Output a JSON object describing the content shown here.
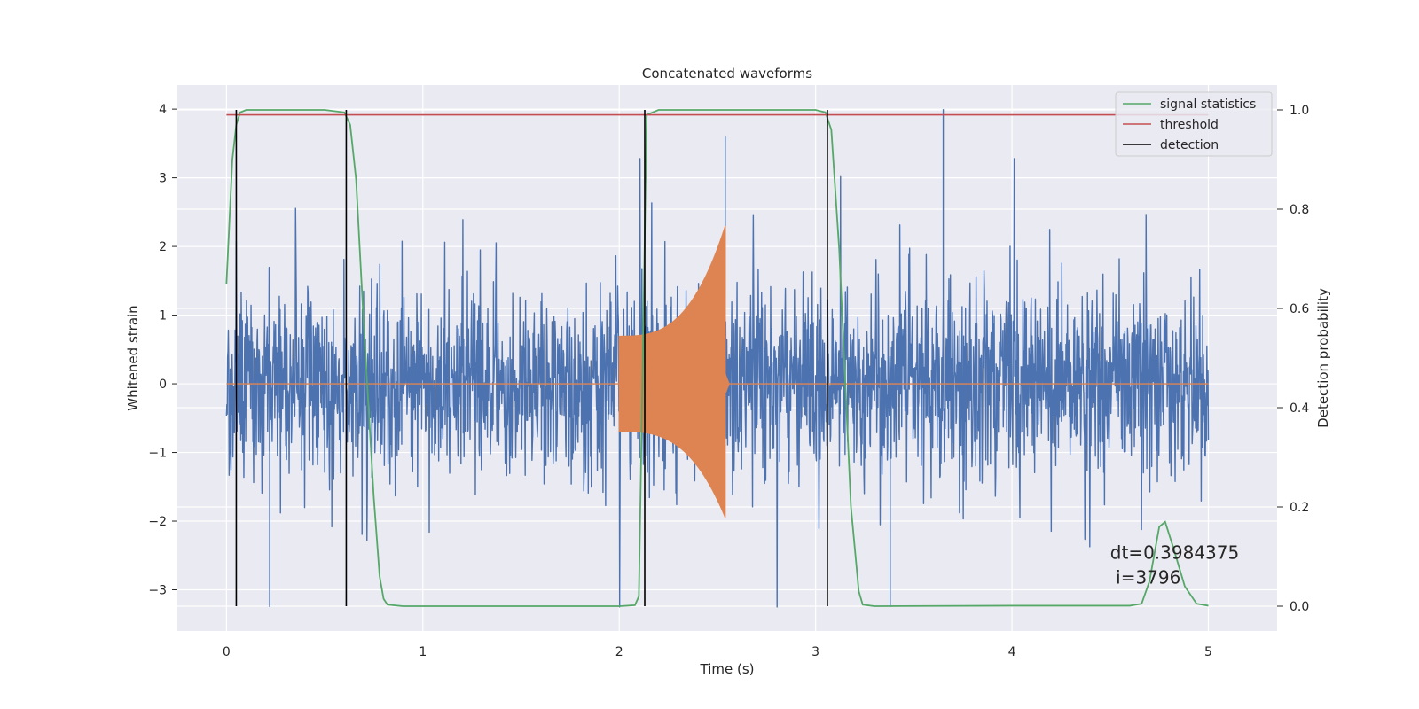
{
  "chart_data": {
    "type": "line",
    "title": "Concatenated waveforms",
    "xlabel": "Time (s)",
    "ylabel": "Whitened strain",
    "y2label": "Detection probability",
    "xlim": [
      -0.25,
      5.35
    ],
    "ylim": [
      -3.6,
      4.35
    ],
    "y2lim": [
      -0.05,
      1.05
    ],
    "xticks": [
      0,
      1,
      2,
      3,
      4,
      5
    ],
    "xtick_labels": [
      "0",
      "1",
      "2",
      "3",
      "4",
      "5"
    ],
    "yticks": [
      -3,
      -2,
      -1,
      0,
      1,
      2,
      3,
      4
    ],
    "ytick_labels": [
      "−3",
      "−2",
      "−1",
      "0",
      "1",
      "2",
      "3",
      "4"
    ],
    "y2ticks": [
      0.0,
      0.2,
      0.4,
      0.6,
      0.8,
      1.0
    ],
    "y2tick_labels": [
      "0.0",
      "0.2",
      "0.4",
      "0.6",
      "0.8",
      "1.0"
    ],
    "grid": true,
    "legend_position": "top-right",
    "colors": {
      "strain": "#4c72b0",
      "injection": "#dd8452",
      "signal": "#55a868",
      "threshold": "#c44e52",
      "detection": "#000000",
      "panel": "#eaeaf2",
      "grid": "#ffffff"
    },
    "strain": {
      "x_range": [
        0,
        5
      ],
      "typical_amplitude": 1.2,
      "peak_max": 4.0,
      "peak_min": -3.25,
      "notable_peaks": [
        {
          "x": 3.65,
          "y": 4.0
        },
        {
          "x": 2.54,
          "y": 3.6
        },
        {
          "x": 0.22,
          "y": -3.25
        },
        {
          "x": 3.38,
          "y": -3.25
        }
      ]
    },
    "injection": {
      "x_range": [
        0,
        5
      ],
      "active_range": [
        2.0,
        2.54
      ],
      "start_amplitude": 0.7,
      "peak_amplitude": 2.3,
      "peak_min": -1.95
    },
    "series": [
      {
        "name": "signal statistics",
        "axis": "right",
        "x": [
          0.0,
          0.03,
          0.05,
          0.07,
          0.1,
          0.15,
          0.3,
          0.5,
          0.6,
          0.63,
          0.66,
          0.7,
          0.75,
          0.78,
          0.8,
          0.82,
          0.9,
          1.5,
          2.0,
          2.08,
          2.1,
          2.12,
          2.14,
          2.2,
          2.5,
          3.0,
          3.05,
          3.08,
          3.12,
          3.18,
          3.22,
          3.24,
          3.3,
          4.0,
          4.6,
          4.66,
          4.7,
          4.75,
          4.78,
          4.82,
          4.88,
          4.94,
          5.0
        ],
        "values": [
          0.65,
          0.9,
          0.97,
          0.995,
          1.0,
          1.0,
          1.0,
          1.0,
          0.995,
          0.97,
          0.86,
          0.56,
          0.22,
          0.06,
          0.015,
          0.003,
          0.0,
          0.0,
          0.0,
          0.002,
          0.02,
          0.5,
          0.99,
          1.0,
          1.0,
          1.0,
          0.995,
          0.96,
          0.72,
          0.2,
          0.03,
          0.003,
          0.0,
          0.001,
          0.001,
          0.005,
          0.05,
          0.16,
          0.17,
          0.12,
          0.04,
          0.005,
          0.001
        ]
      },
      {
        "name": "threshold",
        "axis": "right",
        "x": [
          0,
          5
        ],
        "values": [
          0.99,
          0.99
        ]
      },
      {
        "name": "detection",
        "axis": "right",
        "type": "vlines",
        "x": [
          0.05,
          0.61,
          2.13,
          3.06
        ],
        "ymin": 0,
        "ymax": 1
      }
    ],
    "annotation": {
      "lines": [
        "dt=0.3984375",
        " i=3796"
      ],
      "x": 4.5,
      "y": -2.55
    }
  }
}
